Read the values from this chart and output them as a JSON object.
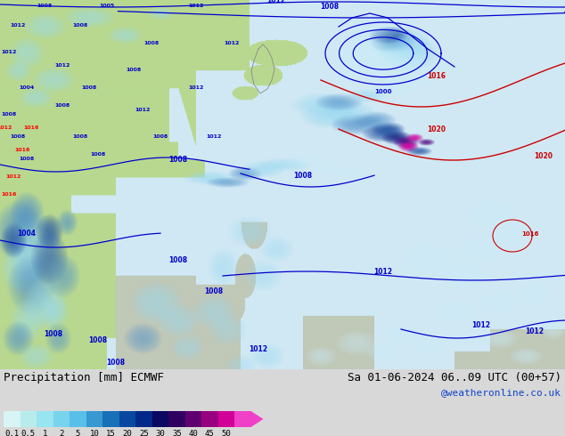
{
  "title_left": "Precipitation [mm] ECMWF",
  "title_right": "Sa 01-06-2024 06..09 UTC (00+57)",
  "subtitle_right": "@weatheronline.co.uk",
  "colorbar_values": [
    "0.1",
    "0.5",
    "1",
    "2",
    "5",
    "10",
    "15",
    "20",
    "25",
    "30",
    "35",
    "40",
    "45",
    "50"
  ],
  "colorbar_colors": [
    "#d8f4f4",
    "#b8ecec",
    "#98e4f0",
    "#78d4ec",
    "#58c0e8",
    "#3898d0",
    "#1870b8",
    "#0848a0",
    "#002888",
    "#0a0860",
    "#300060",
    "#600070",
    "#980080",
    "#d00098",
    "#f040c8"
  ],
  "ocean_color": "#d0e8f4",
  "land_color_green": "#b8d890",
  "land_color_pale": "#d8e8c0",
  "bg_bottom": "#d8d8d8",
  "fig_width": 6.34,
  "fig_height": 4.9,
  "dpi": 100
}
